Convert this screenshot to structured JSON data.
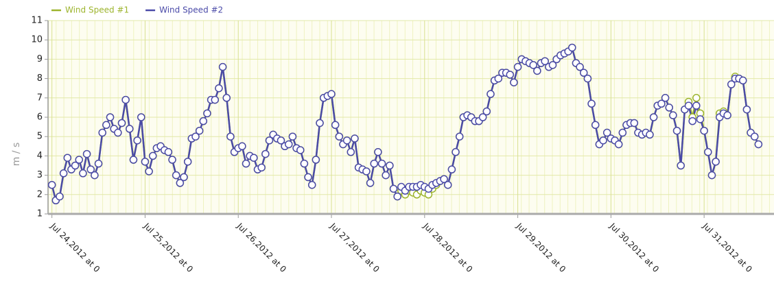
{
  "chart_data": {
    "type": "line",
    "ylabel": "m / s",
    "legend": "top-left",
    "grid": true,
    "x": [
      0,
      1,
      2,
      3,
      4,
      5,
      6,
      7,
      8,
      9,
      10,
      11,
      12,
      13,
      14,
      15,
      16,
      17,
      18,
      19,
      20,
      21,
      22,
      23,
      24,
      25,
      26,
      27,
      28,
      29,
      30,
      31,
      32,
      33,
      34,
      35,
      36,
      37,
      38,
      39,
      40,
      41,
      42,
      43,
      44,
      45,
      46,
      47,
      48,
      49,
      50,
      51,
      52,
      53,
      54,
      55,
      56,
      57,
      58,
      59,
      60,
      61,
      62,
      63,
      64,
      65,
      66,
      67,
      68,
      69,
      70,
      71,
      72,
      73,
      74,
      75,
      76,
      77,
      78,
      79,
      80,
      81,
      82,
      83,
      84,
      85,
      86,
      87,
      88,
      89,
      90,
      91,
      92,
      93,
      94,
      95,
      96,
      97,
      98,
      99,
      100,
      101,
      102,
      103,
      104,
      105,
      106,
      107,
      108,
      109,
      110,
      111,
      112,
      113,
      114,
      115,
      116,
      117,
      118,
      119,
      120,
      121,
      122,
      123,
      124,
      125,
      126,
      127,
      128,
      129,
      130,
      131,
      132,
      133,
      134,
      135,
      136,
      137,
      138,
      139,
      140,
      141,
      142,
      143,
      144,
      145,
      146,
      147,
      148,
      149,
      150,
      151,
      152,
      153,
      154,
      155,
      156,
      157,
      158,
      159,
      160,
      161,
      162,
      163,
      164,
      165,
      166,
      167,
      168,
      169,
      170,
      171,
      172,
      173,
      174,
      175,
      176,
      177,
      178,
      179,
      180,
      181,
      182
    ],
    "series": [
      {
        "name": "Wind Speed #1",
        "color": "#9cb42c",
        "values": [
          2.5,
          1.7,
          1.9,
          3.1,
          3.9,
          3.3,
          3.5,
          3.8,
          3.1,
          4.1,
          3.3,
          3.0,
          3.6,
          5.2,
          5.6,
          6.0,
          5.4,
          5.2,
          5.7,
          6.9,
          5.4,
          3.8,
          4.8,
          6.0,
          3.7,
          3.2,
          4.0,
          4.4,
          4.5,
          4.3,
          4.2,
          3.8,
          3.0,
          2.6,
          2.9,
          3.7,
          4.9,
          5.0,
          5.3,
          5.8,
          6.2,
          6.9,
          6.9,
          7.5,
          8.6,
          7.0,
          5.0,
          4.2,
          4.4,
          4.5,
          3.6,
          4.0,
          3.9,
          3.3,
          3.4,
          4.1,
          4.8,
          5.1,
          4.9,
          4.8,
          4.5,
          4.6,
          5.0,
          4.4,
          4.3,
          3.6,
          2.9,
          2.5,
          3.8,
          5.7,
          7.0,
          7.1,
          7.2,
          5.6,
          5.0,
          4.6,
          4.8,
          4.2,
          4.9,
          3.4,
          3.3,
          3.2,
          2.6,
          3.6,
          4.2,
          3.6,
          3.0,
          3.5,
          2.3,
          1.9,
          2.2,
          2.0,
          2.2,
          2.1,
          2.0,
          2.2,
          2.1,
          2.0,
          2.3,
          2.5,
          2.7,
          2.8,
          2.5,
          3.3,
          4.2,
          5.0,
          6.0,
          6.1,
          6.0,
          5.8,
          5.8,
          6.0,
          6.3,
          7.2,
          7.9,
          8.0,
          8.3,
          8.3,
          8.2,
          7.8,
          8.6,
          9.0,
          8.9,
          8.8,
          8.7,
          8.4,
          8.8,
          8.9,
          8.6,
          8.7,
          9.0,
          9.2,
          9.3,
          9.4,
          9.6,
          8.8,
          8.6,
          8.3,
          8.0,
          6.7,
          5.6,
          4.6,
          4.8,
          5.2,
          4.9,
          4.8,
          4.6,
          5.2,
          5.6,
          5.7,
          5.7,
          5.2,
          5.1,
          5.2,
          5.1,
          6.0,
          6.6,
          6.7,
          7.0,
          6.5,
          6.1,
          5.3,
          3.5,
          6.4,
          6.8,
          6.0,
          7.0,
          6.2,
          5.3,
          4.2,
          3.0,
          3.7,
          6.2,
          6.3,
          6.1,
          7.7,
          8.1,
          8.0,
          7.9,
          6.4,
          5.2,
          5.0,
          4.6
        ]
      },
      {
        "name": "Wind Speed #2",
        "color": "#4a4aa8",
        "values": [
          2.5,
          1.7,
          1.9,
          3.1,
          3.9,
          3.3,
          3.5,
          3.8,
          3.1,
          4.1,
          3.3,
          3.0,
          3.6,
          5.2,
          5.6,
          6.0,
          5.4,
          5.2,
          5.7,
          6.9,
          5.4,
          3.8,
          4.8,
          6.0,
          3.7,
          3.2,
          4.0,
          4.4,
          4.5,
          4.3,
          4.2,
          3.8,
          3.0,
          2.6,
          2.9,
          3.7,
          4.9,
          5.0,
          5.3,
          5.8,
          6.2,
          6.9,
          6.9,
          7.5,
          8.6,
          7.0,
          5.0,
          4.2,
          4.4,
          4.5,
          3.6,
          4.0,
          3.9,
          3.3,
          3.4,
          4.1,
          4.8,
          5.1,
          4.9,
          4.8,
          4.5,
          4.6,
          5.0,
          4.4,
          4.3,
          3.6,
          2.9,
          2.5,
          3.8,
          5.7,
          7.0,
          7.1,
          7.2,
          5.6,
          5.0,
          4.6,
          4.8,
          4.2,
          4.9,
          3.4,
          3.3,
          3.2,
          2.6,
          3.6,
          4.2,
          3.6,
          3.0,
          3.5,
          2.3,
          1.9,
          2.4,
          2.2,
          2.4,
          2.4,
          2.4,
          2.5,
          2.4,
          2.3,
          2.5,
          2.6,
          2.7,
          2.8,
          2.5,
          3.3,
          4.2,
          5.0,
          6.0,
          6.1,
          6.0,
          5.8,
          5.8,
          6.0,
          6.3,
          7.2,
          7.9,
          8.0,
          8.3,
          8.3,
          8.2,
          7.8,
          8.6,
          9.0,
          8.9,
          8.8,
          8.7,
          8.4,
          8.8,
          8.9,
          8.6,
          8.7,
          9.0,
          9.2,
          9.3,
          9.4,
          9.6,
          8.8,
          8.6,
          8.3,
          8.0,
          6.7,
          5.6,
          4.6,
          4.8,
          5.2,
          4.9,
          4.8,
          4.6,
          5.2,
          5.6,
          5.7,
          5.7,
          5.2,
          5.1,
          5.2,
          5.1,
          6.0,
          6.6,
          6.7,
          7.0,
          6.5,
          6.1,
          5.3,
          3.5,
          6.4,
          6.6,
          5.8,
          6.6,
          5.9,
          5.3,
          4.2,
          3.0,
          3.7,
          6.0,
          6.2,
          6.1,
          7.7,
          8.0,
          8.0,
          7.9,
          6.4,
          5.2,
          5.0,
          4.6
        ]
      }
    ],
    "xlim": [
      -1,
      186
    ],
    "xticks": [
      {
        "value": 0,
        "label": "Jul 24,2012 at 0"
      },
      {
        "value": 24,
        "label": "Jul 25,2012 at 0"
      },
      {
        "value": 48,
        "label": "Jul 26,2012 at 0"
      },
      {
        "value": 72,
        "label": "Jul 27,2012 at 0"
      },
      {
        "value": 96,
        "label": "Jul 28,2012 at 0"
      },
      {
        "value": 120,
        "label": "Jul 29,2012 at 0"
      },
      {
        "value": 144,
        "label": "Jul 30,2012 at 0"
      },
      {
        "value": 168,
        "label": "Jul 31,2012 at 0"
      }
    ],
    "ylim": [
      1,
      11
    ],
    "yticks": [
      1,
      2,
      3,
      4,
      5,
      6,
      7,
      8,
      9,
      10,
      11
    ]
  }
}
